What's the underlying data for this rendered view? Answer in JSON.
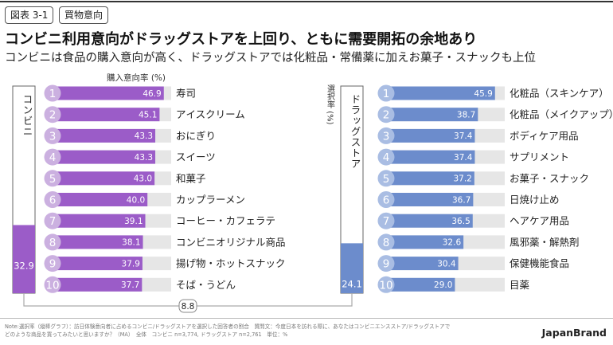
{
  "figure_tag": "図表 3-1",
  "category_tag": "買物意向",
  "headline": "コンビニ利用意向がドラッグストアを上回り、ともに需要開拓の余地あり",
  "subheadline": "コンビニは食品の購入意向が高く、ドラッグストアでは化粧品・常備薬に加えお菓子・スナックも上位",
  "note": "Note:選択率（縦棒グラフ）：訪日体験意向者に占めるコンビニ/ドラッグストアを選択した回答者の割合　質問文：今度日本を訪れる際に、あなたはコンビニエンスストア/ドラッグストアでどのような商品を買ってみたいと思いますか？（MA）　全体　コンビニ n=3,774, ドラッグストア n=2,761　単位：%",
  "brand": "JapanBrand",
  "colors": {
    "convenience": "#9b5cc8",
    "convenience_circle": "#cbb0e0",
    "drugstore": "#6c8ccc",
    "drugstore_circle": "#a9bde3",
    "track": "#e6e6e6",
    "gap_line": "#aaaaaa"
  },
  "chart_data": [
    {
      "type": "bar",
      "orientation": "horizontal",
      "xlabel": "購入意向率 (%)",
      "xlim": [
        0,
        50
      ],
      "ranks": [
        "1",
        "2",
        "3",
        "4",
        "5",
        "6",
        "7",
        "8",
        "9",
        "10"
      ],
      "categories": [
        "寿司",
        "アイスクリーム",
        "おにぎり",
        "スイーツ",
        "和菓子",
        "カップラーメン",
        "コーヒー・カフェラテ",
        "コンビニオリジナル商品",
        "揚げ物・ホットスナック",
        "そば・うどん"
      ],
      "values": [
        46.9,
        45.1,
        43.3,
        43.3,
        43.0,
        40.0,
        39.1,
        38.1,
        37.9,
        37.7
      ]
    },
    {
      "type": "bar",
      "orientation": "horizontal",
      "xlim": [
        0,
        50
      ],
      "ranks": [
        "1",
        "2",
        "3",
        "4",
        "5",
        "6",
        "7",
        "8",
        "9",
        "10"
      ],
      "categories": [
        "化粧品（スキンケア）",
        "化粧品（メイクアップ）",
        "ボディケア用品",
        "サプリメント",
        "お菓子・スナック",
        "日焼け止め",
        "ヘアケア用品",
        "風邪薬・解熱剤",
        "保健機能食品",
        "目薬"
      ],
      "values": [
        45.9,
        38.7,
        37.4,
        37.4,
        37.2,
        36.7,
        36.5,
        32.6,
        30.4,
        29.0
      ]
    },
    {
      "type": "bar",
      "orientation": "vertical",
      "ylabel": "選択率 (%)",
      "ylim": [
        0,
        100
      ],
      "categories": [
        "コンビニ",
        "ドラッグストア"
      ],
      "values": [
        32.9,
        24.1
      ],
      "difference": 8.8
    }
  ]
}
